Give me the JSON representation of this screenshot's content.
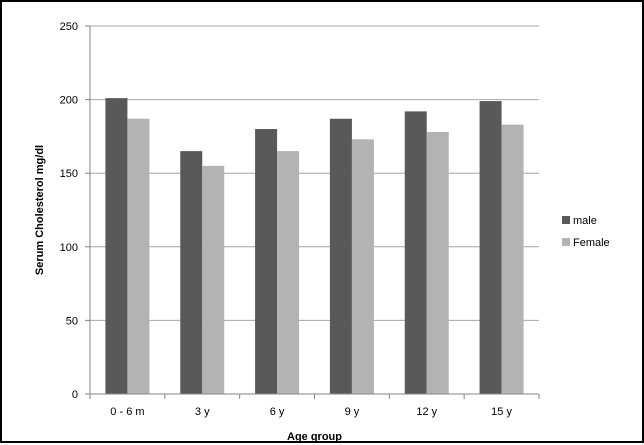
{
  "chart_data": {
    "type": "bar",
    "title": "",
    "xlabel": "Age group",
    "ylabel": "Serum Cholesterol mg/dl",
    "categories": [
      "0 - 6 m",
      "3 y",
      "6 y",
      "9 y",
      "12 y",
      "15 y"
    ],
    "series": [
      {
        "name": "male",
        "color": "#595959",
        "values": [
          201,
          165,
          180,
          187,
          192,
          199
        ]
      },
      {
        "name": "Female",
        "color": "#b3b3b3",
        "values": [
          187,
          155,
          165,
          173,
          178,
          183
        ]
      }
    ],
    "ylim": [
      0,
      250
    ],
    "yticks": [
      0,
      50,
      100,
      150,
      200,
      250
    ],
    "grid": true,
    "legend_position": "right"
  }
}
